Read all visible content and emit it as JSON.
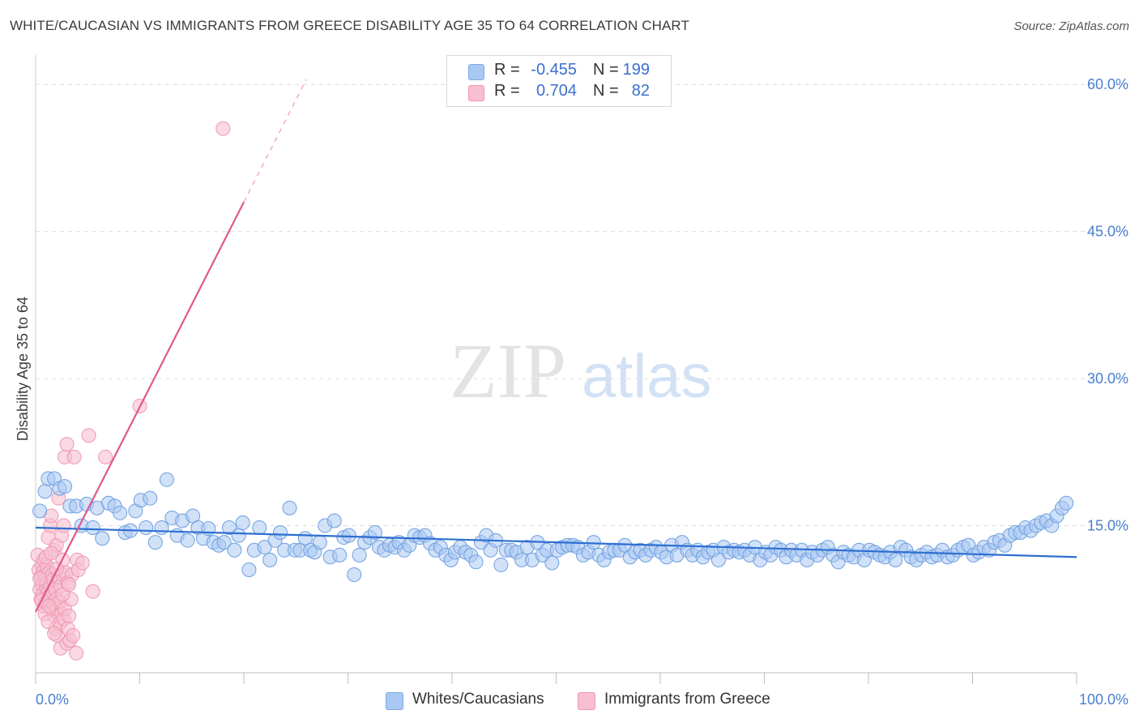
{
  "title": "WHITE/CAUCASIAN VS IMMIGRANTS FROM GREECE DISABILITY AGE 35 TO 64 CORRELATION CHART",
  "source": "Source: ZipAtlas.com",
  "watermark": {
    "zip": "ZIP",
    "atlas": "atlas"
  },
  "legend": {
    "rows": [
      {
        "r_label": "R =",
        "r_value": "-0.455",
        "n_label": "N =",
        "n_value": "199",
        "color": "#a9c8f2",
        "border": "#7fa9e4"
      },
      {
        "r_label": "R =",
        "r_value": "0.704",
        "n_label": "N =",
        "n_value": "82",
        "color": "#f7bfd0",
        "border": "#ee98b3"
      }
    ]
  },
  "bottom_legend": [
    {
      "label": "Whites/Caucasians",
      "color": "#a9c8f2",
      "border": "#7fa9e4"
    },
    {
      "label": "Immigrants from Greece",
      "color": "#f7bfd0",
      "border": "#ee98b3"
    }
  ],
  "chart_data": {
    "type": "scatter",
    "title": "WHITE/CAUCASIAN VS IMMIGRANTS FROM GREECE DISABILITY AGE 35 TO 64 CORRELATION CHART",
    "xlabel": "",
    "ylabel": "Disability Age 35 to 64",
    "xlim": [
      0,
      100
    ],
    "ylim": [
      0,
      62
    ],
    "x_tick_labels": [
      "0.0%",
      "100.0%"
    ],
    "y_ticks": [
      15,
      30,
      45,
      60
    ],
    "y_tick_labels": [
      "15.0%",
      "30.0%",
      "45.0%",
      "60.0%"
    ],
    "colors": {
      "blue_fill": "#a9c8f2",
      "blue_edge": "#6f9fe0",
      "blue_line": "#2e6fd0",
      "pink_fill": "#f7bfd0",
      "pink_edge": "#ee98b3",
      "pink_line": "#e0588a",
      "grid": "#dcdcdc",
      "tick": "#4a7fd0"
    },
    "series": [
      {
        "name": "Whites/Caucasians",
        "trend": {
          "x0": 0,
          "y0": 14.8,
          "x1": 100,
          "y1": 11.8
        },
        "points": [
          [
            0.4,
            16.5
          ],
          [
            0.9,
            18.5
          ],
          [
            1.2,
            19.8
          ],
          [
            1.8,
            19.8
          ],
          [
            2.3,
            18.8
          ],
          [
            2.8,
            19.0
          ],
          [
            3.3,
            17.0
          ],
          [
            3.9,
            17.0
          ],
          [
            4.4,
            15.0
          ],
          [
            4.9,
            17.2
          ],
          [
            5.5,
            14.8
          ],
          [
            5.9,
            16.8
          ],
          [
            6.4,
            13.7
          ],
          [
            7.0,
            17.3
          ],
          [
            7.6,
            17.0
          ],
          [
            8.1,
            16.3
          ],
          [
            8.6,
            14.3
          ],
          [
            9.1,
            14.5
          ],
          [
            9.6,
            16.5
          ],
          [
            10.1,
            17.6
          ],
          [
            10.6,
            14.8
          ],
          [
            11.0,
            17.8
          ],
          [
            11.5,
            13.3
          ],
          [
            12.1,
            14.8
          ],
          [
            12.6,
            19.7
          ],
          [
            13.1,
            15.8
          ],
          [
            13.6,
            14.0
          ],
          [
            14.1,
            15.5
          ],
          [
            14.6,
            13.5
          ],
          [
            15.1,
            16.0
          ],
          [
            15.6,
            14.8
          ],
          [
            16.1,
            13.7
          ],
          [
            16.6,
            14.7
          ],
          [
            17.1,
            13.3
          ],
          [
            17.6,
            13.0
          ],
          [
            18.1,
            13.3
          ],
          [
            18.6,
            14.8
          ],
          [
            19.1,
            12.5
          ],
          [
            19.5,
            14.0
          ],
          [
            19.9,
            15.3
          ],
          [
            20.5,
            10.5
          ],
          [
            21.0,
            12.5
          ],
          [
            21.5,
            14.8
          ],
          [
            22.0,
            12.8
          ],
          [
            22.5,
            11.5
          ],
          [
            23.0,
            13.5
          ],
          [
            23.5,
            14.3
          ],
          [
            23.9,
            12.5
          ],
          [
            24.4,
            16.8
          ],
          [
            24.9,
            12.5
          ],
          [
            25.4,
            12.5
          ],
          [
            25.9,
            13.7
          ],
          [
            26.4,
            12.5
          ],
          [
            26.8,
            12.3
          ],
          [
            27.3,
            13.3
          ],
          [
            27.8,
            15.0
          ],
          [
            28.3,
            11.8
          ],
          [
            28.7,
            15.5
          ],
          [
            29.2,
            12.0
          ],
          [
            29.6,
            13.8
          ],
          [
            30.1,
            14.0
          ],
          [
            30.6,
            10.0
          ],
          [
            31.1,
            12.0
          ],
          [
            31.6,
            13.3
          ],
          [
            32.1,
            13.8
          ],
          [
            32.6,
            14.3
          ],
          [
            33.0,
            12.8
          ],
          [
            33.5,
            12.5
          ],
          [
            34.0,
            13.0
          ],
          [
            34.5,
            12.8
          ],
          [
            34.9,
            13.3
          ],
          [
            35.4,
            12.5
          ],
          [
            35.9,
            13.0
          ],
          [
            36.4,
            14.0
          ],
          [
            36.9,
            13.8
          ],
          [
            37.4,
            14.0
          ],
          [
            37.9,
            13.2
          ],
          [
            38.4,
            12.5
          ],
          [
            38.9,
            12.8
          ],
          [
            39.4,
            12.0
          ],
          [
            39.9,
            11.5
          ],
          [
            40.3,
            12.3
          ],
          [
            40.8,
            12.8
          ],
          [
            41.3,
            12.3
          ],
          [
            41.8,
            12.0
          ],
          [
            42.3,
            11.3
          ],
          [
            42.8,
            13.3
          ],
          [
            43.3,
            14.0
          ],
          [
            43.7,
            12.5
          ],
          [
            44.2,
            13.5
          ],
          [
            44.7,
            11.0
          ],
          [
            45.2,
            12.5
          ],
          [
            45.7,
            12.5
          ],
          [
            46.2,
            12.3
          ],
          [
            46.7,
            11.5
          ],
          [
            47.2,
            12.8
          ],
          [
            47.7,
            11.5
          ],
          [
            48.2,
            13.3
          ],
          [
            48.7,
            12.0
          ],
          [
            49.1,
            12.5
          ],
          [
            49.6,
            11.2
          ],
          [
            50.1,
            12.5
          ],
          [
            50.6,
            12.8
          ],
          [
            51.1,
            13.0
          ],
          [
            51.6,
            13.0
          ],
          [
            52.1,
            12.8
          ],
          [
            52.6,
            12.0
          ],
          [
            53.1,
            12.3
          ],
          [
            53.6,
            13.3
          ],
          [
            54.1,
            12.0
          ],
          [
            54.6,
            11.5
          ],
          [
            55.1,
            12.3
          ],
          [
            55.6,
            12.5
          ],
          [
            56.1,
            12.5
          ],
          [
            56.6,
            13.0
          ],
          [
            57.1,
            11.8
          ],
          [
            57.6,
            12.3
          ],
          [
            58.1,
            12.5
          ],
          [
            58.6,
            12.0
          ],
          [
            59.1,
            12.5
          ],
          [
            59.6,
            12.8
          ],
          [
            60.1,
            12.3
          ],
          [
            60.6,
            11.8
          ],
          [
            61.1,
            13.0
          ],
          [
            61.6,
            12.0
          ],
          [
            62.1,
            13.3
          ],
          [
            62.6,
            12.5
          ],
          [
            63.1,
            12.0
          ],
          [
            63.6,
            12.5
          ],
          [
            64.1,
            11.8
          ],
          [
            64.6,
            12.3
          ],
          [
            65.1,
            12.5
          ],
          [
            65.6,
            11.5
          ],
          [
            66.1,
            12.8
          ],
          [
            66.6,
            12.3
          ],
          [
            67.1,
            12.5
          ],
          [
            67.6,
            12.3
          ],
          [
            68.1,
            12.5
          ],
          [
            68.6,
            12.0
          ],
          [
            69.1,
            12.8
          ],
          [
            69.6,
            11.5
          ],
          [
            70.1,
            12.3
          ],
          [
            70.6,
            12.0
          ],
          [
            71.1,
            12.8
          ],
          [
            71.6,
            12.5
          ],
          [
            72.1,
            11.8
          ],
          [
            72.6,
            12.5
          ],
          [
            73.1,
            12.0
          ],
          [
            73.6,
            12.5
          ],
          [
            74.1,
            11.5
          ],
          [
            74.6,
            12.3
          ],
          [
            75.1,
            12.0
          ],
          [
            75.6,
            12.5
          ],
          [
            76.1,
            12.8
          ],
          [
            76.6,
            12.0
          ],
          [
            77.1,
            11.3
          ],
          [
            77.6,
            12.3
          ],
          [
            78.1,
            12.0
          ],
          [
            78.6,
            11.8
          ],
          [
            79.1,
            12.5
          ],
          [
            79.6,
            11.5
          ],
          [
            80.1,
            12.5
          ],
          [
            80.6,
            12.3
          ],
          [
            81.1,
            12.0
          ],
          [
            81.6,
            11.8
          ],
          [
            82.1,
            12.3
          ],
          [
            82.6,
            11.5
          ],
          [
            83.1,
            12.8
          ],
          [
            83.6,
            12.5
          ],
          [
            84.1,
            11.8
          ],
          [
            84.6,
            11.5
          ],
          [
            85.1,
            12.0
          ],
          [
            85.6,
            12.3
          ],
          [
            86.1,
            11.8
          ],
          [
            86.6,
            12.0
          ],
          [
            87.1,
            12.5
          ],
          [
            87.6,
            11.8
          ],
          [
            88.1,
            12.0
          ],
          [
            88.6,
            12.5
          ],
          [
            89.1,
            12.8
          ],
          [
            89.6,
            13.0
          ],
          [
            90.1,
            12.0
          ],
          [
            90.6,
            12.3
          ],
          [
            91.1,
            12.8
          ],
          [
            91.6,
            12.5
          ],
          [
            92.1,
            13.3
          ],
          [
            92.6,
            13.5
          ],
          [
            93.1,
            13.0
          ],
          [
            93.6,
            14.0
          ],
          [
            94.1,
            14.3
          ],
          [
            94.6,
            14.3
          ],
          [
            95.1,
            14.8
          ],
          [
            95.6,
            14.5
          ],
          [
            96.1,
            15.0
          ],
          [
            96.6,
            15.3
          ],
          [
            97.1,
            15.5
          ],
          [
            97.6,
            15.0
          ],
          [
            98.1,
            16.0
          ],
          [
            98.6,
            16.8
          ],
          [
            99.0,
            17.3
          ]
        ]
      },
      {
        "name": "Immigrants from Greece",
        "trend": {
          "x0": 0,
          "y0": 6.2,
          "x1": 20,
          "y1": 48.0,
          "dash_x1": 26,
          "dash_y1": 60.5
        },
        "points": [
          [
            0.2,
            12.0
          ],
          [
            0.3,
            10.5
          ],
          [
            0.4,
            8.5
          ],
          [
            0.5,
            7.5
          ],
          [
            0.5,
            9.8
          ],
          [
            0.6,
            11.0
          ],
          [
            0.6,
            9.0
          ],
          [
            0.7,
            10.3
          ],
          [
            0.7,
            8.0
          ],
          [
            0.8,
            11.5
          ],
          [
            0.8,
            6.8
          ],
          [
            0.9,
            9.5
          ],
          [
            0.9,
            10.0
          ],
          [
            1.0,
            8.8
          ],
          [
            1.0,
            7.2
          ],
          [
            1.1,
            10.8
          ],
          [
            1.1,
            9.2
          ],
          [
            1.2,
            8.2
          ],
          [
            1.2,
            13.8
          ],
          [
            1.3,
            7.8
          ],
          [
            1.3,
            10.2
          ],
          [
            1.4,
            9.0
          ],
          [
            1.4,
            15.0
          ],
          [
            1.5,
            6.5
          ],
          [
            1.5,
            16.0
          ],
          [
            1.6,
            8.0
          ],
          [
            1.6,
            10.0
          ],
          [
            1.7,
            7.0
          ],
          [
            1.7,
            9.5
          ],
          [
            1.8,
            5.8
          ],
          [
            1.8,
            12.5
          ],
          [
            1.9,
            4.5
          ],
          [
            1.9,
            8.5
          ],
          [
            2.0,
            7.5
          ],
          [
            2.0,
            13.0
          ],
          [
            2.1,
            3.8
          ],
          [
            2.1,
            6.5
          ],
          [
            2.2,
            9.8
          ],
          [
            2.2,
            17.8
          ],
          [
            2.3,
            7.2
          ],
          [
            2.3,
            5.0
          ],
          [
            2.4,
            2.5
          ],
          [
            2.4,
            8.8
          ],
          [
            2.5,
            6.0
          ],
          [
            2.5,
            14.0
          ],
          [
            2.6,
            10.0
          ],
          [
            2.6,
            11.5
          ],
          [
            2.7,
            5.5
          ],
          [
            2.7,
            15.0
          ],
          [
            2.8,
            22.0
          ],
          [
            2.8,
            6.5
          ],
          [
            2.9,
            10.2
          ],
          [
            3.0,
            3.0
          ],
          [
            3.0,
            23.3
          ],
          [
            3.1,
            4.5
          ],
          [
            3.1,
            9.2
          ],
          [
            3.2,
            5.8
          ],
          [
            3.3,
            3.3
          ],
          [
            3.4,
            7.5
          ],
          [
            3.5,
            10.0
          ],
          [
            3.6,
            3.8
          ],
          [
            3.7,
            22.0
          ],
          [
            3.9,
            2.0
          ],
          [
            4.0,
            11.5
          ],
          [
            4.1,
            10.5
          ],
          [
            4.5,
            11.2
          ],
          [
            5.1,
            24.2
          ],
          [
            5.5,
            8.3
          ],
          [
            6.7,
            22.0
          ],
          [
            10.0,
            27.2
          ],
          [
            18.0,
            55.5
          ],
          [
            1.0,
            11.8
          ],
          [
            1.5,
            12.2
          ],
          [
            0.9,
            6.0
          ],
          [
            1.2,
            5.2
          ],
          [
            2.6,
            8.0
          ],
          [
            3.2,
            9.0
          ],
          [
            0.4,
            9.6
          ],
          [
            0.6,
            7.4
          ],
          [
            1.3,
            6.8
          ],
          [
            2.0,
            10.6
          ],
          [
            1.8,
            4.0
          ]
        ]
      }
    ]
  }
}
